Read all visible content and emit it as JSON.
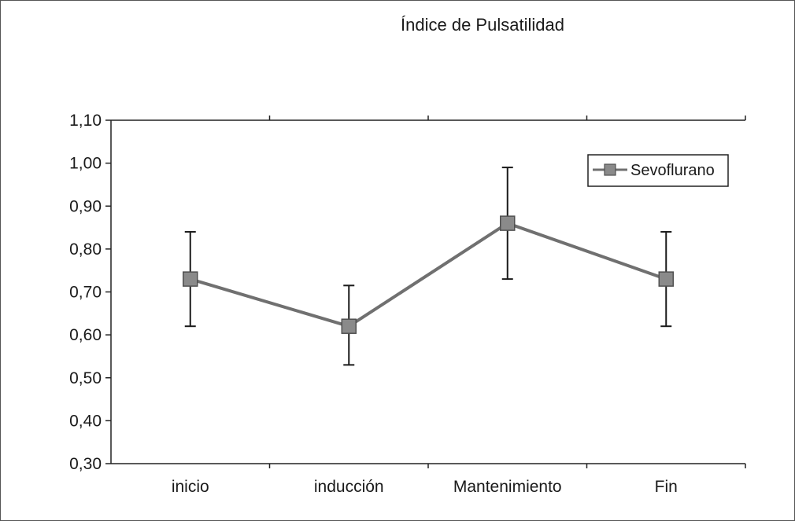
{
  "chart_data": {
    "type": "line",
    "title": "Índice de Pulsatilidad",
    "xlabel": "",
    "ylabel": "",
    "categories": [
      "inicio",
      "inducción",
      "Mantenimiento",
      "Fin"
    ],
    "ylim": [
      0.3,
      1.1
    ],
    "yticks": [
      "0,30",
      "0,40",
      "0,50",
      "0,60",
      "0,70",
      "0,80",
      "0,90",
      "1,00",
      "1,10"
    ],
    "series": [
      {
        "name": "Sevoflurano",
        "values": [
          0.73,
          0.62,
          0.86,
          0.73
        ],
        "error_low": [
          0.62,
          0.53,
          0.73,
          0.62
        ],
        "error_high": [
          0.84,
          0.715,
          0.99,
          0.84
        ],
        "color": "#707070",
        "marker": "square"
      }
    ],
    "legend_position": "top-right",
    "grid": false
  }
}
